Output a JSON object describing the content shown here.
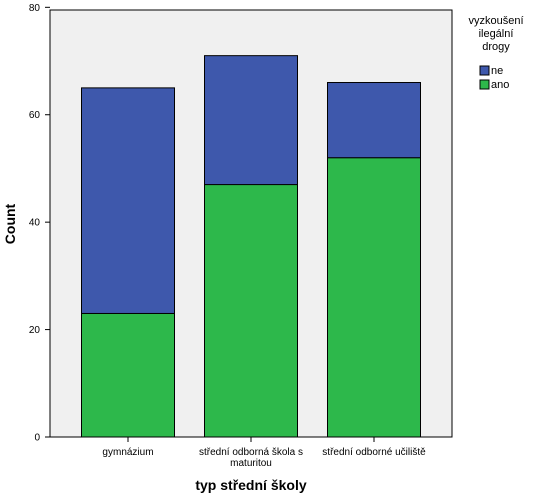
{
  "chart_data": {
    "type": "bar",
    "stacked": true,
    "title": "",
    "xlabel": "typ střední školy",
    "ylabel": "Count",
    "ylim": [
      0,
      80
    ],
    "yticks": [
      0,
      20,
      40,
      60,
      80
    ],
    "categories": [
      [
        "gymnázium"
      ],
      [
        "střední odborná škola s",
        "maturitou"
      ],
      [
        "střední odborné učiliště"
      ]
    ],
    "series": [
      {
        "name": "ano",
        "color": "#2db84b",
        "values": [
          23,
          47,
          52
        ]
      },
      {
        "name": "ne",
        "color": "#3e58ac",
        "values": [
          42,
          24,
          14
        ]
      }
    ],
    "legend": {
      "title": [
        "vyzkoušení",
        "ilegální",
        "drogy"
      ],
      "placement": "top-right",
      "order": [
        "ne",
        "ano"
      ]
    },
    "plot_background": "#f0f0f0",
    "grid": false
  }
}
